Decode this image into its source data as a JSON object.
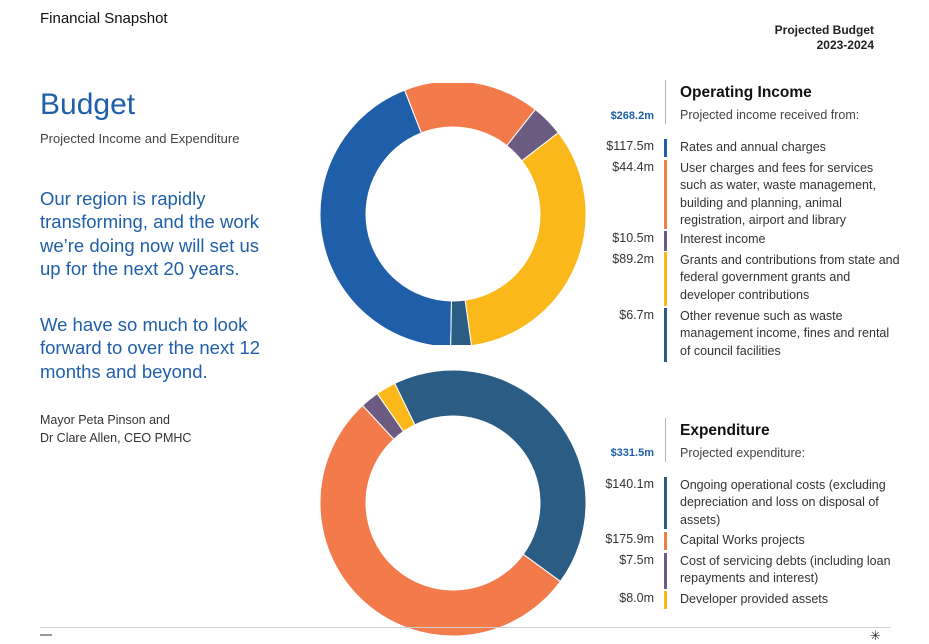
{
  "header": {
    "title": "Financial Snapshot",
    "right_line1": "Projected Budget",
    "right_line2": "2023-2024"
  },
  "intro": {
    "title": "Budget",
    "subtitle": "Projected Income and Expenditure",
    "quote1": "Our region is rapidly transforming, and the work we’re doing now will set us up for the next 20 years.",
    "quote2": "We have so much to look forward to over the next 12 months and beyond.",
    "attribution_line1": "Mayor Peta Pinson and",
    "attribution_line2": "Dr Clare Allen, CEO PMHC"
  },
  "colors": {
    "dark_blue": "#1f5fa9",
    "orange": "#f37b4b",
    "purple": "#6b5b80",
    "yellow": "#fbb81a",
    "navy": "#2b5c84"
  },
  "income": {
    "title": "Operating Income",
    "total": "$268.2m",
    "subtitle": "Projected income received from:",
    "items": [
      {
        "amount": "$117.5m",
        "value": 117.5,
        "color": "#1f5fa9",
        "desc": "Rates and annual charges"
      },
      {
        "amount": "$44.4m",
        "value": 44.4,
        "color": "#f37b4b",
        "desc": "User charges and fees for services such as water, waste management, building and planning, animal registration, airport and library"
      },
      {
        "amount": "$10.5m",
        "value": 10.5,
        "color": "#6b5b80",
        "desc": "Interest income"
      },
      {
        "amount": "$89.2m",
        "value": 89.2,
        "color": "#fbb81a",
        "desc": "Grants and contributions from state and federal government grants and developer contributions"
      },
      {
        "amount": "$6.7m",
        "value": 6.7,
        "color": "#2b5c84",
        "desc": "Other revenue such as waste management income, fines and rental of council facilities"
      }
    ]
  },
  "expenditure": {
    "title": "Expenditure",
    "total": "$331.5m",
    "subtitle": "Projected expenditure:",
    "items": [
      {
        "amount": "$140.1m",
        "value": 140.1,
        "color": "#2b5c84",
        "desc": "Ongoing operational costs (excluding depreciation and loss on disposal of assets)"
      },
      {
        "amount": "$175.9m",
        "value": 175.9,
        "color": "#f37b4b",
        "desc": "Capital Works projects"
      },
      {
        "amount": "$7.5m",
        "value": 7.5,
        "color": "#6b5b80",
        "desc": "Cost of servicing debts (including loan repayments and interest)"
      },
      {
        "amount": "$8.0m",
        "value": 8.0,
        "color": "#fbb81a",
        "desc": "Developer provided assets"
      }
    ]
  },
  "chart_data": [
    {
      "type": "pie",
      "categories": [
        "Rates and annual charges",
        "User charges and fees for services",
        "Interest income",
        "Grants and contributions",
        "Other revenue"
      ],
      "values": [
        117.5,
        44.4,
        10.5,
        89.2,
        6.7
      ],
      "colors": [
        "#1f5fa9",
        "#f37b4b",
        "#6b5b80",
        "#fbb81a",
        "#2b5c84"
      ],
      "donut": true
    },
    {
      "type": "pie",
      "categories": [
        "Ongoing operational costs",
        "Capital Works projects",
        "Cost of servicing debts",
        "Developer provided assets"
      ],
      "values": [
        140.1,
        175.9,
        7.5,
        8.0
      ],
      "colors": [
        "#2b5c84",
        "#f37b4b",
        "#6b5b80",
        "#fbb81a"
      ],
      "donut": true
    }
  ],
  "footer": {
    "star": "✳"
  }
}
